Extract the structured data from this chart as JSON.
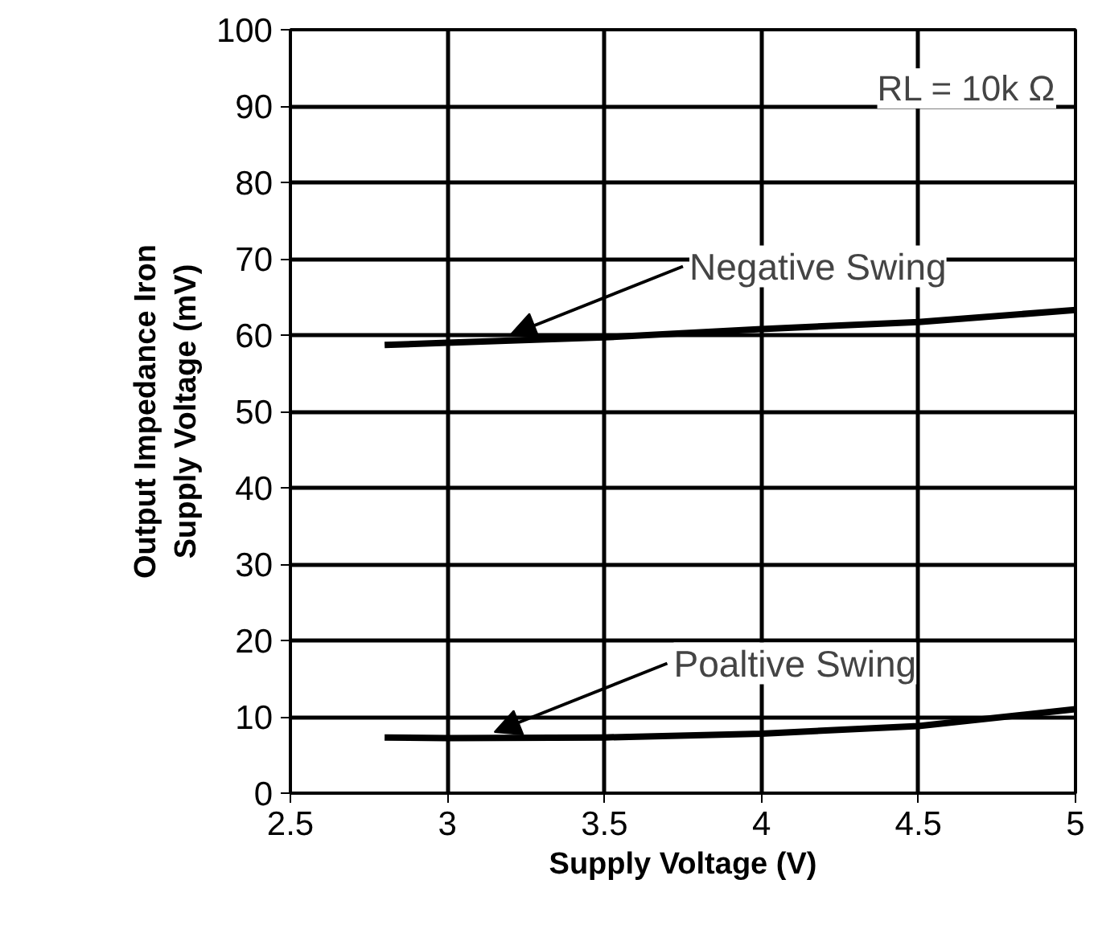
{
  "chart_data": {
    "type": "line",
    "xlabel": "Supply Voltage (V)",
    "ylabel": "Output Impedance Iron\nSupply Voltage (mV)",
    "xlim": [
      2.5,
      5
    ],
    "xticks": [
      2.5,
      3,
      3.5,
      4,
      4.5,
      5
    ],
    "ylim": [
      0,
      100
    ],
    "yticks": [
      0,
      10,
      20,
      30,
      40,
      50,
      60,
      70,
      80,
      90,
      100
    ],
    "grid": true,
    "series": [
      {
        "color": "#000000",
        "x": [
          2.8,
          3.0,
          3.5,
          4.0,
          4.5,
          5.0
        ],
        "values": [
          58.7,
          59,
          59.7,
          60.8,
          61.7,
          63.3
        ]
      },
      {
        "color": "#000000",
        "x": [
          2.8,
          3.0,
          3.5,
          4.0,
          4.5,
          5.0
        ],
        "values": [
          7.3,
          7.2,
          7.3,
          7.8,
          8.8,
          11
        ]
      }
    ],
    "annotations": [
      "RL = 10k Ω",
      {
        "text": "Negative Swing",
        "x": 3.2,
        "y": 60
      },
      {
        "text": "Poaltive Swing",
        "x": 3.15,
        "y": 8
      }
    ]
  }
}
